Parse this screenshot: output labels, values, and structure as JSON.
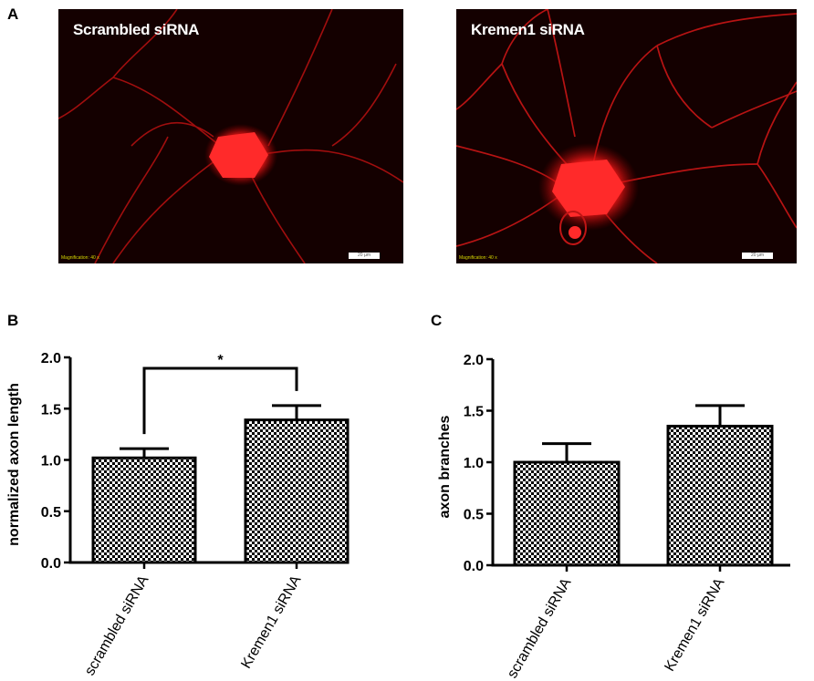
{
  "panels": {
    "a": {
      "letter": "A"
    },
    "b": {
      "letter": "B"
    },
    "c": {
      "letter": "C"
    }
  },
  "micrographs": [
    {
      "label": "Scrambled siRNA",
      "magnification": "Magnification: 40 x",
      "scale": "20 µm"
    },
    {
      "label": "Kremen1 siRNA",
      "magnification": "Magnification: 40 x",
      "scale": "20 µm"
    }
  ],
  "colors": {
    "stain": "#ff2020",
    "background": "#140000",
    "bars": "#000000"
  },
  "chart_data": [
    {
      "type": "bar",
      "ylabel": "normalized axon length",
      "categories": [
        "scrambled siRNA",
        "Kremen1 siRNA"
      ],
      "values": [
        1.02,
        1.39
      ],
      "errors": [
        0.09,
        0.14
      ],
      "ylim": [
        0,
        2.0
      ],
      "yticks": [
        "0.0",
        "0.5",
        "1.0",
        "1.5",
        "2.0"
      ],
      "annotation": "*",
      "pattern": "checkerboard"
    },
    {
      "type": "bar",
      "ylabel": "axon branches",
      "categories": [
        "scrambled siRNA",
        "Kremen1 siRNA"
      ],
      "values": [
        1.0,
        1.35
      ],
      "errors": [
        0.18,
        0.2
      ],
      "ylim": [
        0,
        2.0
      ],
      "yticks": [
        "0.0",
        "0.5",
        "1.0",
        "1.5",
        "2.0"
      ],
      "pattern": "checkerboard"
    }
  ]
}
